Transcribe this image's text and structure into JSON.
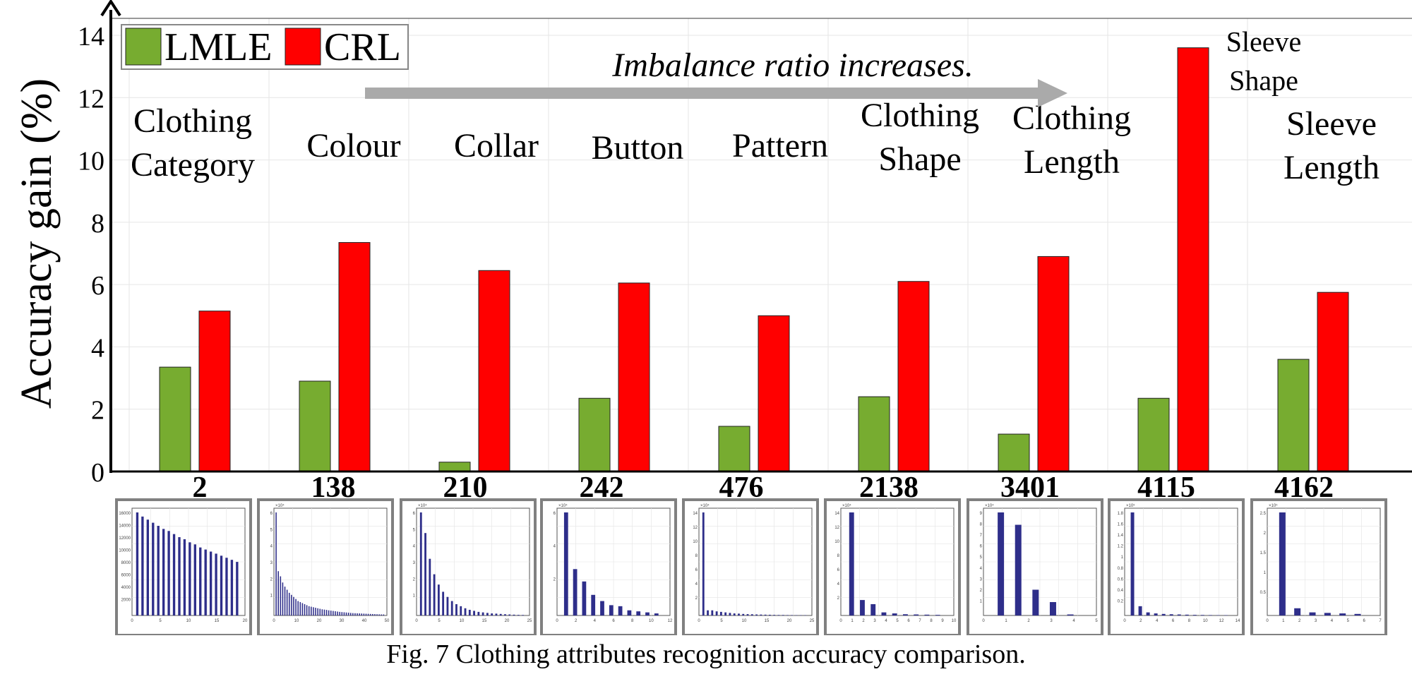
{
  "chart_data": {
    "type": "bar",
    "ylabel": "Accuracy gain (%)",
    "ylim": [
      0,
      14
    ],
    "yticks": [
      0,
      2,
      4,
      6,
      8,
      10,
      12,
      14
    ],
    "grid": true,
    "legend_placement": "top-left",
    "categories": [
      "Clothing Category",
      "Colour",
      "Collar",
      "Button",
      "Pattern",
      "Clothing Shape",
      "Clothing Length",
      "Sleeve Shape",
      "Sleeve Length"
    ],
    "imbalance_ratios": [
      "2",
      "138",
      "210",
      "242",
      "476",
      "2138",
      "3401",
      "4115",
      "4162"
    ],
    "series": [
      {
        "name": "LMLE",
        "color": "#77ac30",
        "values": [
          3.35,
          2.9,
          0.3,
          2.35,
          1.45,
          2.4,
          1.2,
          2.35,
          3.6
        ]
      },
      {
        "name": "CRL",
        "color": "#ff0000",
        "values": [
          5.15,
          7.35,
          6.45,
          6.05,
          5.0,
          6.1,
          6.9,
          13.6,
          5.75
        ]
      }
    ],
    "annotation": "Imbalance ratio increases.",
    "distributions": [
      {
        "yexp": "",
        "yticks": [
          "16000",
          "14000",
          "12000",
          "10000",
          "8000",
          "6000",
          "4000",
          "2000"
        ],
        "xticks": [
          "0",
          "5",
          "10",
          "15",
          "20"
        ],
        "bars": [
          1.0,
          0.96,
          0.93,
          0.9,
          0.87,
          0.84,
          0.82,
          0.79,
          0.76,
          0.74,
          0.71,
          0.69,
          0.66,
          0.64,
          0.62,
          0.6,
          0.58,
          0.56,
          0.54,
          0.52
        ]
      },
      {
        "yexp": "×10⁴",
        "yticks": [
          "6",
          "5",
          "4",
          "3",
          "2",
          "1"
        ],
        "xticks": [
          "0",
          "10",
          "20",
          "30",
          "40",
          "50"
        ],
        "bars": [
          1.0,
          0.43,
          0.38,
          0.32,
          0.28,
          0.25,
          0.22,
          0.2,
          0.18,
          0.16,
          0.14,
          0.13,
          0.12,
          0.11,
          0.1,
          0.09,
          0.085,
          0.08,
          0.075,
          0.07,
          0.065,
          0.06,
          0.057,
          0.054,
          0.05,
          0.047,
          0.044,
          0.041,
          0.038,
          0.035,
          0.033,
          0.031,
          0.029,
          0.027,
          0.025,
          0.023,
          0.022,
          0.021,
          0.02,
          0.019,
          0.018,
          0.017,
          0.016,
          0.015,
          0.014,
          0.013,
          0.012,
          0.011,
          0.01,
          0.01
        ]
      },
      {
        "yexp": "×10⁴",
        "yticks": [
          "6",
          "5",
          "4",
          "3",
          "2",
          "1"
        ],
        "xticks": [
          "0",
          "5",
          "10",
          "15",
          "20",
          "25"
        ],
        "bars": [
          1.0,
          0.8,
          0.55,
          0.4,
          0.3,
          0.23,
          0.18,
          0.14,
          0.11,
          0.09,
          0.07,
          0.055,
          0.045,
          0.035,
          0.03,
          0.025,
          0.02,
          0.018,
          0.015,
          0.012,
          0.01,
          0.008,
          0.006,
          0.005
        ]
      },
      {
        "yexp": "×10⁴",
        "yticks": [
          "6",
          "4",
          "2"
        ],
        "xticks": [
          "0",
          "2",
          "4",
          "6",
          "8",
          "10",
          "12"
        ],
        "bars": [
          1.0,
          0.45,
          0.33,
          0.2,
          0.14,
          0.1,
          0.09,
          0.05,
          0.04,
          0.03,
          0.02
        ]
      },
      {
        "yexp": "×10⁴",
        "yticks": [
          "14",
          "12",
          "10",
          "8",
          "6",
          "4",
          "2"
        ],
        "xticks": [
          "0",
          "5",
          "10",
          "15",
          "20",
          "25"
        ],
        "bars": [
          1.0,
          0.05,
          0.05,
          0.04,
          0.035,
          0.03,
          0.025,
          0.02,
          0.018,
          0.015,
          0.013,
          0.012,
          0.01,
          0.009,
          0.008,
          0.007,
          0.006,
          0.005,
          0.005,
          0.004,
          0.004,
          0.003,
          0.003,
          0.003
        ]
      },
      {
        "yexp": "×10⁴",
        "yticks": [
          "14",
          "12",
          "10",
          "8",
          "6",
          "4",
          "2"
        ],
        "xticks": [
          "0",
          "1",
          "2",
          "3",
          "4",
          "5",
          "6",
          "7",
          "8",
          "9",
          "10"
        ],
        "bars": [
          1.0,
          0.15,
          0.11,
          0.03,
          0.02,
          0.012,
          0.01,
          0.008,
          0.006
        ]
      },
      {
        "yexp": "×10⁴",
        "yticks": [
          "9",
          "8",
          "7",
          "6",
          "5",
          "4",
          "3",
          "2",
          "1"
        ],
        "xticks": [
          "0",
          "1",
          "2",
          "3",
          "4",
          "5"
        ],
        "bars": [
          1.0,
          0.88,
          0.25,
          0.13,
          0.01
        ]
      },
      {
        "yexp": "×10⁵",
        "yticks": [
          "1.8",
          "1.6",
          "1.4",
          "1.2",
          "1",
          "0.8",
          "0.6",
          "0.4",
          "0.2"
        ],
        "xticks": [
          "0",
          "2",
          "4",
          "6",
          "8",
          "10",
          "12",
          "14"
        ],
        "bars": [
          1.0,
          0.09,
          0.03,
          0.02,
          0.015,
          0.012,
          0.01,
          0.008,
          0.006,
          0.005,
          0.004,
          0.003,
          0.003
        ]
      },
      {
        "yexp": "×10⁵",
        "yticks": [
          "2.5",
          "2",
          "1.5",
          "1",
          "0.5"
        ],
        "xticks": [
          "0",
          "1",
          "2",
          "3",
          "4",
          "5",
          "6",
          "7"
        ],
        "bars": [
          1.0,
          0.07,
          0.03,
          0.025,
          0.02,
          0.015
        ]
      }
    ]
  },
  "caption": "Fig. 7 Clothing attributes recognition accuracy comparison."
}
